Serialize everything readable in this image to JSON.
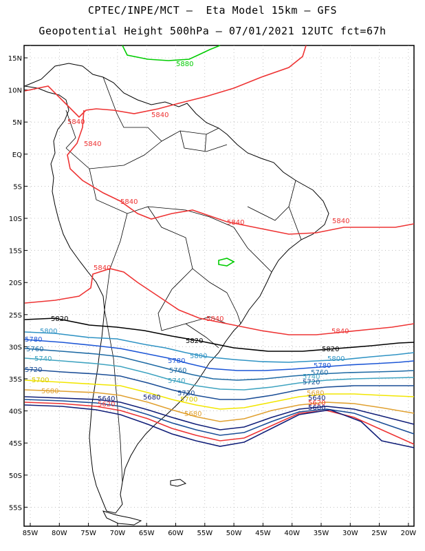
{
  "title_line1": "CPTEC/INPE/MCT –  Eta Model 15km – GFS",
  "title_line2": "Geopotential Height 500hPa – 07/01/2021 12UTC fct=67h",
  "lat_labels": [
    "15N",
    "10N",
    "5N",
    "EQ",
    "5S",
    "10S",
    "15S",
    "20S",
    "25S",
    "30S",
    "35S",
    "40S",
    "45S",
    "50S",
    "55S"
  ],
  "lon_labels": [
    "85W",
    "80W",
    "75W",
    "70W",
    "65W",
    "60W",
    "55W",
    "50W",
    "45W",
    "40W",
    "35W",
    "30W",
    "25W",
    "20W"
  ],
  "contours": [
    {
      "value": "5880",
      "color": "#00cc00"
    },
    {
      "value": "5840",
      "color": "#ee3333"
    },
    {
      "value": "5820",
      "color": "#000000"
    },
    {
      "value": "5800",
      "color": "#2f93c4"
    },
    {
      "value": "5780",
      "color": "#1b55d6"
    },
    {
      "value": "5760",
      "color": "#1e6aa4"
    },
    {
      "value": "5740",
      "color": "#3ea3c0"
    },
    {
      "value": "5720",
      "color": "#1a4d96"
    },
    {
      "value": "5700",
      "color": "#f2e600"
    },
    {
      "value": "5680",
      "color": "#e0a030"
    },
    {
      "value": "5640",
      "color": "#101e78"
    },
    {
      "value": "5620",
      "color": "#ee3333"
    },
    {
      "value": "5600",
      "color": "#101e78"
    }
  ]
}
